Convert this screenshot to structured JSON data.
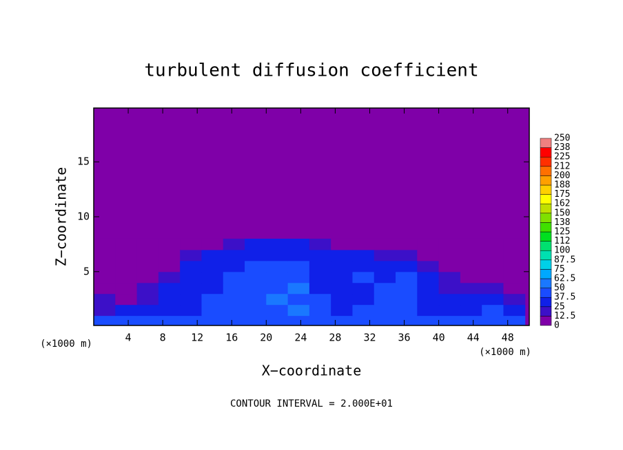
{
  "chart_data": {
    "type": "contour",
    "title": "turbulent diffusion coefficient",
    "xlabel": "X−coordinate",
    "ylabel": "Z−coordinate",
    "x_unit": "(×1000 m)",
    "annotation": "CONTOUR INTERVAL = 2.000E+01",
    "xlim": [
      0,
      50.5
    ],
    "ylim": [
      0.1,
      19.9
    ],
    "xticks": [
      4,
      8,
      12,
      16,
      20,
      24,
      28,
      32,
      36,
      40,
      44,
      48
    ],
    "yticks": [
      5,
      10,
      15
    ],
    "x_centers": [
      1.25,
      3.75,
      6.25,
      8.75,
      11.25,
      13.75,
      16.25,
      18.75,
      21.25,
      23.75,
      26.25,
      28.75,
      31.25,
      33.75,
      36.25,
      38.75,
      41.25,
      43.75,
      46.25,
      48.75
    ],
    "z_centers": [
      0.5,
      1.5,
      2.5,
      3.5,
      4.5,
      5.5,
      6.5,
      7.5
    ],
    "values": [
      [
        38,
        40,
        40,
        42,
        40,
        45,
        40,
        40,
        42,
        45,
        40,
        40,
        42,
        40,
        40,
        38,
        40,
        42,
        45,
        40
      ],
      [
        20,
        25,
        30,
        35,
        30,
        40,
        45,
        40,
        45,
        50,
        40,
        35,
        40,
        45,
        40,
        30,
        25,
        30,
        40,
        30
      ],
      [
        15,
        10,
        20,
        30,
        35,
        40,
        45,
        40,
        50,
        45,
        40,
        35,
        30,
        45,
        40,
        35,
        30,
        25,
        30,
        20
      ],
      [
        10,
        8,
        15,
        25,
        30,
        35,
        40,
        45,
        45,
        50,
        35,
        30,
        35,
        40,
        45,
        30,
        20,
        15,
        20,
        10
      ],
      [
        5,
        5,
        10,
        15,
        30,
        35,
        40,
        40,
        45,
        45,
        30,
        30,
        40,
        35,
        40,
        35,
        15,
        10,
        8,
        5
      ],
      [
        2,
        2,
        5,
        10,
        25,
        35,
        35,
        40,
        40,
        40,
        35,
        30,
        35,
        35,
        30,
        20,
        10,
        5,
        2,
        2
      ],
      [
        0,
        0,
        2,
        5,
        20,
        30,
        35,
        35,
        35,
        35,
        30,
        30,
        25,
        20,
        15,
        5,
        2,
        0,
        0,
        0
      ],
      [
        0,
        0,
        0,
        0,
        5,
        10,
        15,
        25,
        30,
        30,
        20,
        10,
        5,
        0,
        0,
        0,
        0,
        0,
        0,
        0
      ]
    ],
    "levels": [
      0,
      12.5,
      25,
      37.5,
      50,
      62.5,
      75,
      87.5,
      100,
      112,
      125,
      138,
      150,
      162,
      175,
      188,
      200,
      212,
      225,
      238,
      250
    ],
    "colors": [
      "#7f00a8",
      "#3c10c8",
      "#1020e8",
      "#1a4cff",
      "#1a78ff",
      "#00a8ff",
      "#00d0e8",
      "#00e0b0",
      "#00e070",
      "#00e020",
      "#40e000",
      "#80e000",
      "#c0e000",
      "#ffff00",
      "#ffd000",
      "#ffa000",
      "#ff7000",
      "#ff3000",
      "#ff0000",
      "#f08080"
    ]
  }
}
